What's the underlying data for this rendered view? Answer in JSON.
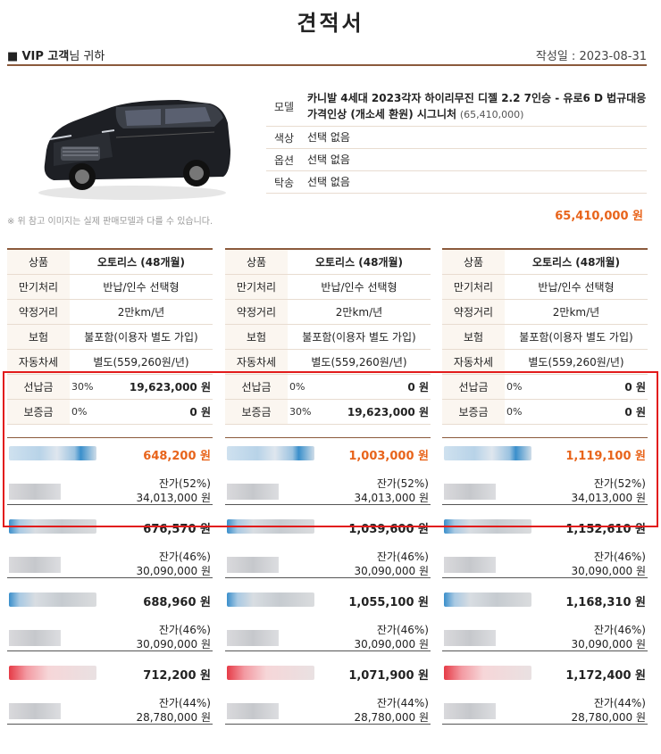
{
  "title": "견적서",
  "customer": {
    "bullet": "■",
    "name": "VIP 고객",
    "suffix": "님 귀하"
  },
  "date_label": "작성일 : 2023-08-31",
  "vehicle": {
    "model_label": "모델",
    "model_value": "카니발 4세대 2023각자 하이리무진 디젤 2.2 7인승 - 유로6 D 법규대응 가격인상 (개소세 환원) 시그니처",
    "model_price": "(65,410,000)",
    "color_label": "색상",
    "color_value": "선택 없음",
    "option_label": "옵션",
    "option_value": "선택 없음",
    "delivery_label": "탁송",
    "delivery_value": "선택 없음",
    "note": "※ 위 참고 이미지는 실제 판매모델과 다를 수 있습니다.",
    "total": "65,410,000 원"
  },
  "columns": [
    {
      "rows": [
        {
          "k": "상품",
          "v": "오토리스 (48개월)"
        },
        {
          "k": "만기처리",
          "v": "반납/인수 선택형"
        },
        {
          "k": "약정거리",
          "v": "2만km/년"
        },
        {
          "k": "보험",
          "v": "불포함(이용자 별도 가입)"
        },
        {
          "k": "자동차세",
          "v": "별도(559,260원/년)"
        }
      ],
      "advance": {
        "k": "선납금",
        "pct": "30%",
        "amt": "19,623,000 원"
      },
      "deposit": {
        "k": "보증금",
        "pct": "0%",
        "amt": "0 원"
      },
      "offers": [
        {
          "monthly": "648,200 원",
          "rv": "잔가(52%)",
          "rv_amt": "34,013,000 원"
        },
        {
          "monthly": "676,570 원",
          "rv": "잔가(46%)",
          "rv_amt": "30,090,000 원"
        },
        {
          "monthly": "688,960 원",
          "rv": "잔가(46%)",
          "rv_amt": "30,090,000 원"
        },
        {
          "monthly": "712,200 원",
          "rv": "잔가(44%)",
          "rv_amt": "28,780,000 원"
        }
      ]
    },
    {
      "rows": [
        {
          "k": "상품",
          "v": "오토리스 (48개월)"
        },
        {
          "k": "만기처리",
          "v": "반납/인수 선택형"
        },
        {
          "k": "약정거리",
          "v": "2만km/년"
        },
        {
          "k": "보험",
          "v": "불포함(이용자 별도 가입)"
        },
        {
          "k": "자동차세",
          "v": "별도(559,260원/년)"
        }
      ],
      "advance": {
        "k": "선납금",
        "pct": "0%",
        "amt": "0 원"
      },
      "deposit": {
        "k": "보증금",
        "pct": "30%",
        "amt": "19,623,000 원"
      },
      "offers": [
        {
          "monthly": "1,003,000 원",
          "rv": "잔가(52%)",
          "rv_amt": "34,013,000 원"
        },
        {
          "monthly": "1,039,600 원",
          "rv": "잔가(46%)",
          "rv_amt": "30,090,000 원"
        },
        {
          "monthly": "1,055,100 원",
          "rv": "잔가(46%)",
          "rv_amt": "30,090,000 원"
        },
        {
          "monthly": "1,071,900 원",
          "rv": "잔가(44%)",
          "rv_amt": "28,780,000 원"
        }
      ]
    },
    {
      "rows": [
        {
          "k": "상품",
          "v": "오토리스 (48개월)"
        },
        {
          "k": "만기처리",
          "v": "반납/인수 선택형"
        },
        {
          "k": "약정거리",
          "v": "2만km/년"
        },
        {
          "k": "보험",
          "v": "불포함(이용자 별도 가입)"
        },
        {
          "k": "자동차세",
          "v": "별도(559,260원/년)"
        }
      ],
      "advance": {
        "k": "선납금",
        "pct": "0%",
        "amt": "0 원"
      },
      "deposit": {
        "k": "보증금",
        "pct": "0%",
        "amt": "0 원"
      },
      "offers": [
        {
          "monthly": "1,119,100 원",
          "rv": "잔가(52%)",
          "rv_amt": "34,013,000 원"
        },
        {
          "monthly": "1,152,610 원",
          "rv": "잔가(46%)",
          "rv_amt": "30,090,000 원"
        },
        {
          "monthly": "1,168,310 원",
          "rv": "잔가(46%)",
          "rv_amt": "30,090,000 원"
        },
        {
          "monthly": "1,172,400 원",
          "rv": "잔가(44%)",
          "rv_amt": "28,780,000 원"
        }
      ]
    }
  ]
}
